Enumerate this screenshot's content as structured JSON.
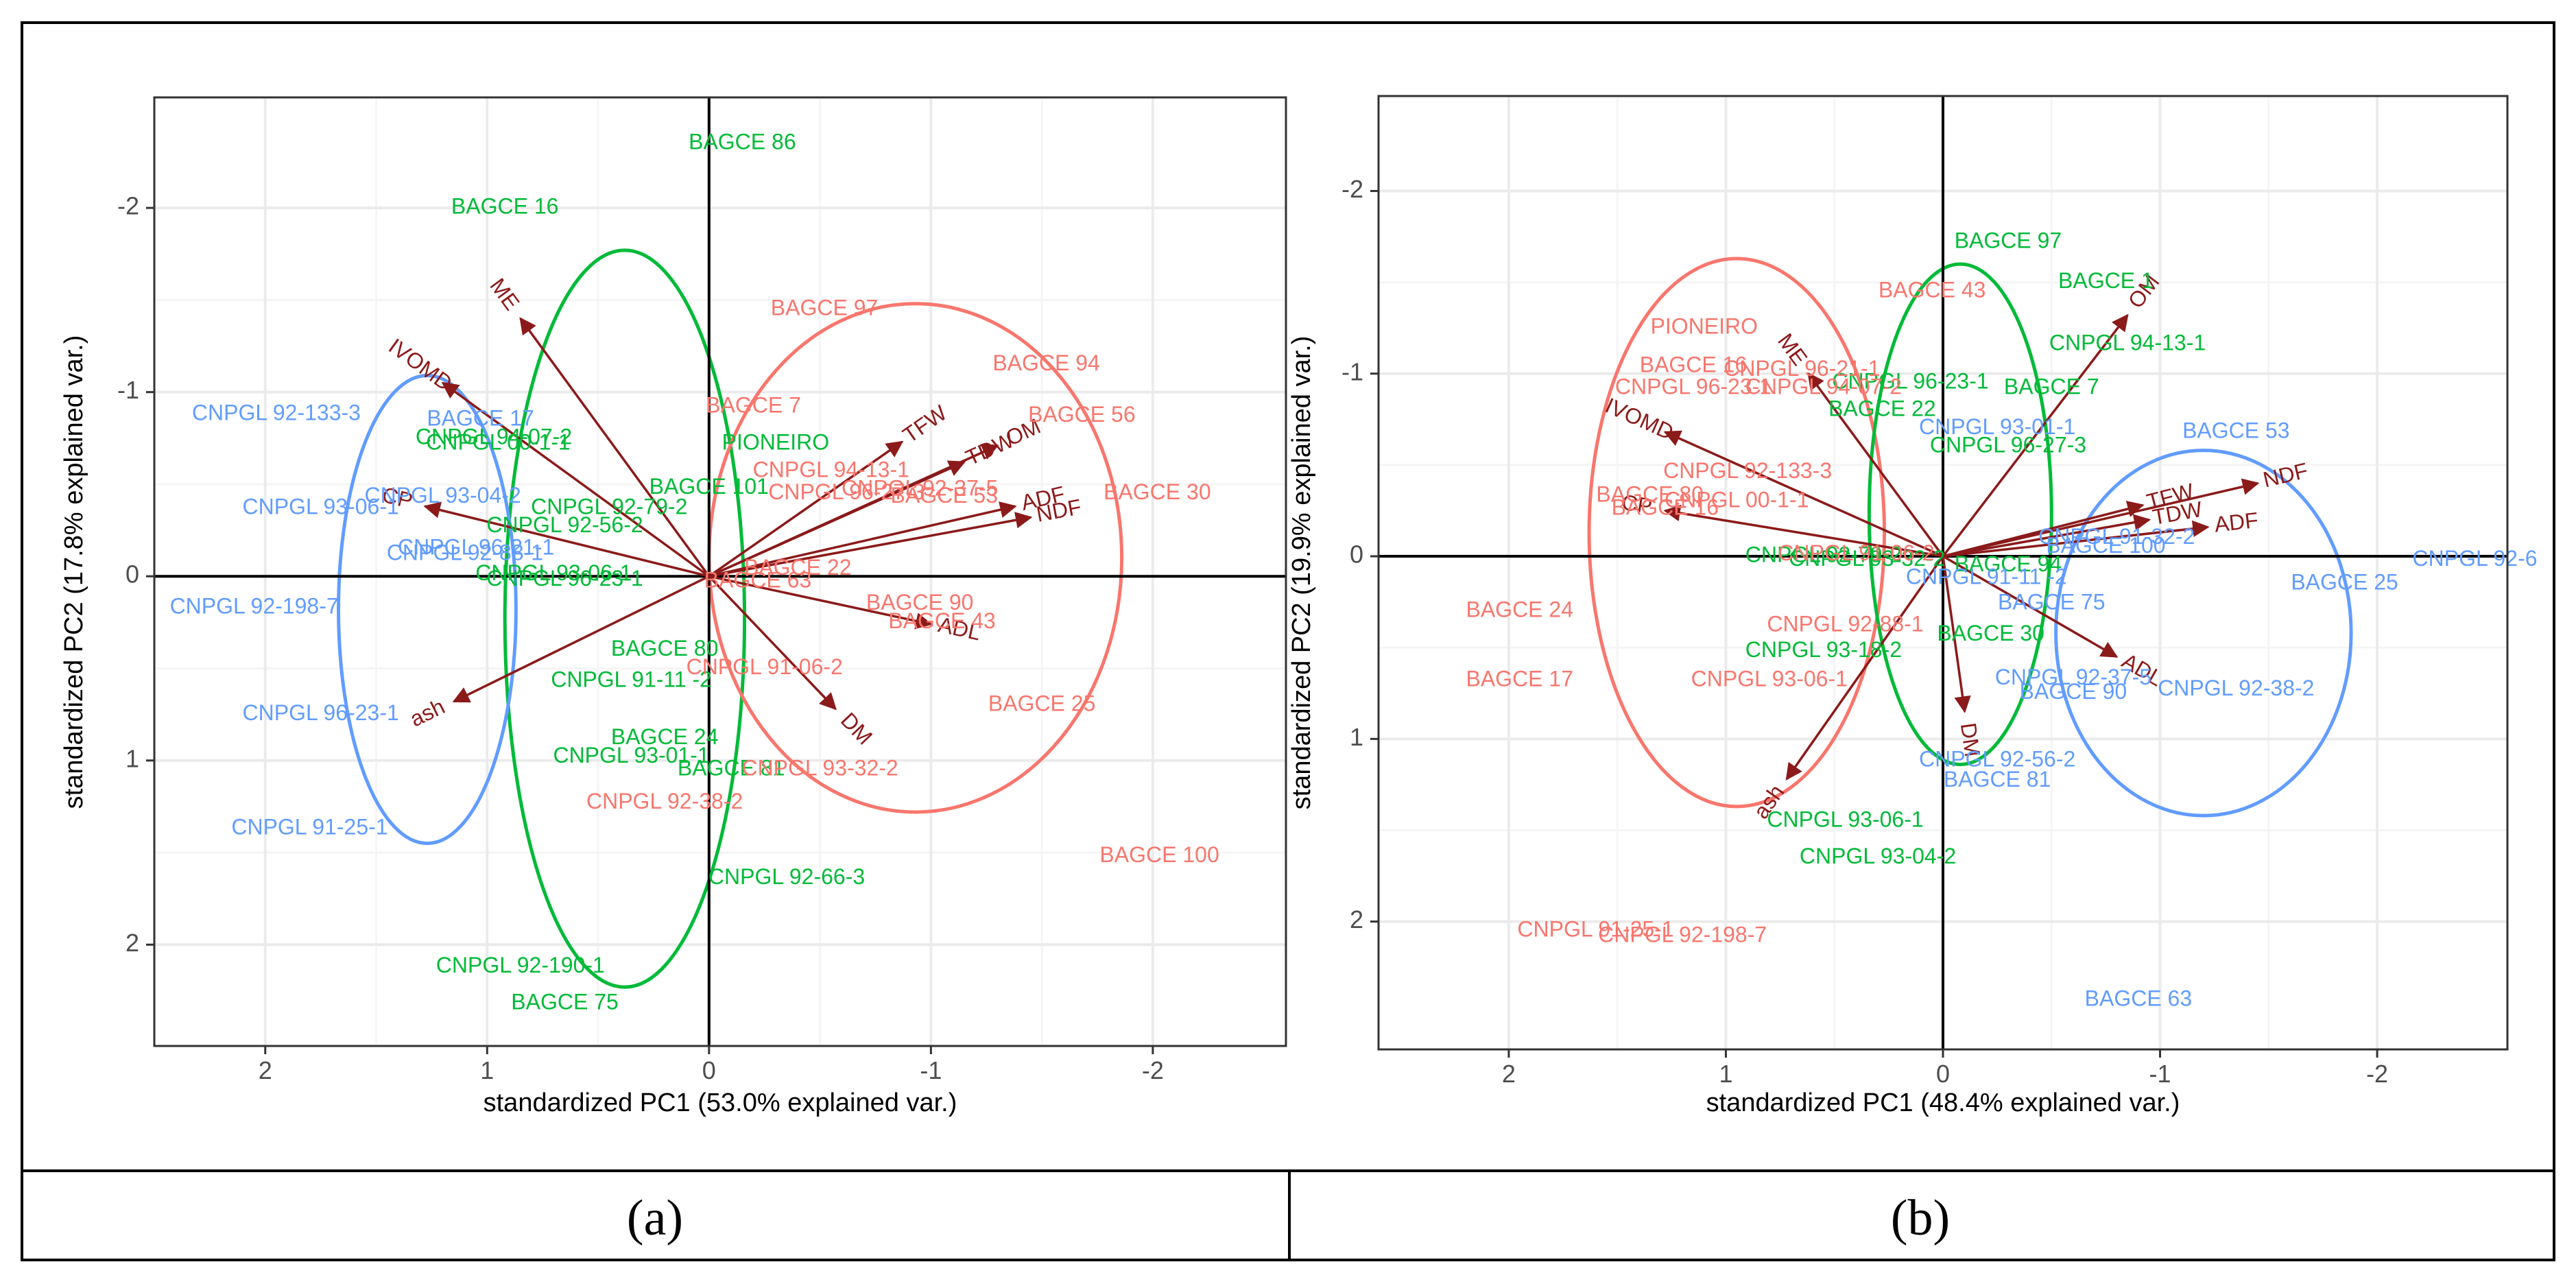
{
  "colors": {
    "red": "#F8766D",
    "green": "#00BA38",
    "blue": "#619CFF",
    "arrow": "#8B1A1A",
    "grid_major": "#ebebeb",
    "grid_minor": "#f5f5f5",
    "axis_line": "#000000",
    "panel_border": "#333333"
  },
  "captions": [
    "(a)",
    "(b)"
  ],
  "chart_data": [
    {
      "type": "scatter",
      "subtype": "pca-biplot",
      "title": "",
      "xlabel": "standardized PC1 (53.0% explained var.)",
      "ylabel": "standardized PC2 (17.8% explained var.)",
      "xlim": [
        2.5,
        -2.6
      ],
      "ylim": [
        -2.6,
        2.55
      ],
      "xticks": [
        2,
        1,
        0,
        -1,
        -2
      ],
      "yticks": [
        -2,
        -1,
        0,
        1,
        2
      ],
      "grid": true,
      "points": [
        {
          "label": "BAGCE 86",
          "x": -0.15,
          "y": -2.35,
          "group": "green"
        },
        {
          "label": "BAGCE 16",
          "x": 0.92,
          "y": -2.0,
          "group": "green"
        },
        {
          "label": "CNPGL 94-07-2",
          "x": 0.97,
          "y": -0.75,
          "group": "green"
        },
        {
          "label": "CNPGL 00-1-1",
          "x": 0.95,
          "y": -0.72,
          "group": "green"
        },
        {
          "label": "PIONEIRO",
          "x": -0.3,
          "y": -0.72,
          "group": "green"
        },
        {
          "label": "BAGCE 101",
          "x": 0.0,
          "y": -0.48,
          "group": "green"
        },
        {
          "label": "CNPGL 92-79-2",
          "x": 0.45,
          "y": -0.37,
          "group": "green"
        },
        {
          "label": "CNPGL 92-56-2",
          "x": 0.65,
          "y": -0.27,
          "group": "green"
        },
        {
          "label": "CNPGL 93-06-1",
          "x": 0.7,
          "y": -0.01,
          "group": "green"
        },
        {
          "label": "CNPGL 96-23-1",
          "x": 0.65,
          "y": 0.02,
          "group": "green"
        },
        {
          "label": "BAGCE 80",
          "x": 0.2,
          "y": 0.4,
          "group": "green"
        },
        {
          "label": "CNPGL 91-11 -2",
          "x": 0.35,
          "y": 0.57,
          "group": "green"
        },
        {
          "label": "BAGCE 24",
          "x": 0.2,
          "y": 0.88,
          "group": "green"
        },
        {
          "label": "CNPGL 93-01-1",
          "x": 0.35,
          "y": 0.98,
          "group": "green"
        },
        {
          "label": "BAGCE 81",
          "x": -0.1,
          "y": 1.05,
          "group": "green"
        },
        {
          "label": "CNPGL 92-66-3",
          "x": -0.35,
          "y": 1.64,
          "group": "green"
        },
        {
          "label": "CNPGL 92-190-1",
          "x": 0.85,
          "y": 2.12,
          "group": "green"
        },
        {
          "label": "BAGCE 75",
          "x": 0.65,
          "y": 2.32,
          "group": "green"
        },
        {
          "label": "BAGCE 97",
          "x": -0.52,
          "y": -1.45,
          "group": "red"
        },
        {
          "label": "BAGCE 94",
          "x": -1.52,
          "y": -1.15,
          "group": "red"
        },
        {
          "label": "BAGCE 56",
          "x": -1.68,
          "y": -0.87,
          "group": "red"
        },
        {
          "label": "BAGCE 7",
          "x": -0.2,
          "y": -0.92,
          "group": "red"
        },
        {
          "label": "CNPGL 94-13-1",
          "x": -0.55,
          "y": -0.57,
          "group": "red"
        },
        {
          "label": "CNPGL 96-27-3",
          "x": -0.62,
          "y": -0.45,
          "group": "red"
        },
        {
          "label": "CNPGL 92-37-5",
          "x": -0.95,
          "y": -0.47,
          "group": "red"
        },
        {
          "label": "BAGCE 53",
          "x": -1.06,
          "y": -0.43,
          "group": "red"
        },
        {
          "label": "BAGCE 30",
          "x": -2.02,
          "y": -0.45,
          "group": "red"
        },
        {
          "label": "BAGCE 22",
          "x": -0.4,
          "y": -0.04,
          "group": "red"
        },
        {
          "label": "BAGCE 63",
          "x": -0.22,
          "y": 0.03,
          "group": "red"
        },
        {
          "label": "BAGCE 90",
          "x": -0.95,
          "y": 0.15,
          "group": "red"
        },
        {
          "label": "BAGCE 43",
          "x": -1.05,
          "y": 0.25,
          "group": "red"
        },
        {
          "label": "CNPGL 91-06-2",
          "x": -0.25,
          "y": 0.5,
          "group": "red"
        },
        {
          "label": "BAGCE 25",
          "x": -1.5,
          "y": 0.7,
          "group": "red"
        },
        {
          "label": "CNPGL 93-32-2",
          "x": -0.5,
          "y": 1.05,
          "group": "red"
        },
        {
          "label": "CNPGL 92-38-2",
          "x": 0.2,
          "y": 1.23,
          "group": "red"
        },
        {
          "label": "BAGCE 100",
          "x": -2.03,
          "y": 1.52,
          "group": "red"
        },
        {
          "label": "CNPGL 92-133-3",
          "x": 1.95,
          "y": -0.88,
          "group": "blue"
        },
        {
          "label": "BAGCE 17",
          "x": 1.03,
          "y": -0.85,
          "group": "blue"
        },
        {
          "label": "CNPGL 93-04-2",
          "x": 1.2,
          "y": -0.43,
          "group": "blue"
        },
        {
          "label": "CNPGL 93-06-1",
          "x": 1.75,
          "y": -0.37,
          "group": "blue"
        },
        {
          "label": "CNPGL 96-21-1",
          "x": 1.05,
          "y": -0.15,
          "group": "blue"
        },
        {
          "label": "CNPGL 92-88-1",
          "x": 1.1,
          "y": -0.12,
          "group": "blue"
        },
        {
          "label": "CNPGL 92-198-7",
          "x": 2.05,
          "y": 0.17,
          "group": "blue"
        },
        {
          "label": "CNPGL 96-23-1",
          "x": 1.75,
          "y": 0.75,
          "group": "blue"
        },
        {
          "label": "CNPGL 91-25-1",
          "x": 1.8,
          "y": 1.37,
          "group": "blue"
        }
      ],
      "arrows": [
        {
          "label": "ME",
          "x": 0.85,
          "y": -1.4
        },
        {
          "label": "IVOMD",
          "x": 1.2,
          "y": -1.05
        },
        {
          "label": "CP",
          "x": 1.28,
          "y": -0.38
        },
        {
          "label": "ash",
          "x": 1.15,
          "y": 0.68
        },
        {
          "label": "TFW",
          "x": -0.87,
          "y": -0.73
        },
        {
          "label": "TDW",
          "x": -1.15,
          "y": -0.62
        },
        {
          "label": "OM",
          "x": -1.3,
          "y": -0.71
        },
        {
          "label": "ADF",
          "x": -1.38,
          "y": -0.38
        },
        {
          "label": "NDF",
          "x": -1.45,
          "y": -0.32
        },
        {
          "label": "ADL",
          "x": -1.0,
          "y": 0.26
        },
        {
          "label": "DM",
          "x": -0.57,
          "y": 0.72
        }
      ],
      "ellipses": [
        {
          "group": "green",
          "cx": 0.38,
          "cy": 0.23,
          "rx": 0.54,
          "ry": 2.0
        },
        {
          "group": "red",
          "cx": -0.93,
          "cy": -0.1,
          "rx": 0.93,
          "ry": 1.38
        },
        {
          "group": "blue",
          "cx": 1.27,
          "cy": 0.18,
          "rx": 0.4,
          "ry": 1.27
        }
      ]
    },
    {
      "type": "scatter",
      "subtype": "pca-biplot",
      "title": "",
      "xlabel": "standardized PC1 (48.4% explained var.)",
      "ylabel": "standardized PC2 (19.9% explained var.)",
      "xlim": [
        2.6,
        -2.6
      ],
      "ylim": [
        -2.52,
        2.7
      ],
      "xticks": [
        2,
        1,
        0,
        -1,
        -2
      ],
      "yticks": [
        -2,
        -1,
        0,
        1,
        2
      ],
      "grid": true,
      "points": [
        {
          "label": "BAGCE 97",
          "x": -0.3,
          "y": -1.72,
          "group": "green"
        },
        {
          "label": "BAGCE 1",
          "x": -0.75,
          "y": -1.5,
          "group": "green"
        },
        {
          "label": "CNPGL 94-13-1",
          "x": -0.85,
          "y": -1.16,
          "group": "green"
        },
        {
          "label": "CNPGL 96-23-1",
          "x": 0.15,
          "y": -0.95,
          "group": "green"
        },
        {
          "label": "BAGCE 7",
          "x": -0.5,
          "y": -0.92,
          "group": "green"
        },
        {
          "label": "BAGCE 22",
          "x": 0.28,
          "y": -0.8,
          "group": "green"
        },
        {
          "label": "CNPGL 96-27-3",
          "x": -0.3,
          "y": -0.6,
          "group": "green"
        },
        {
          "label": "CNPGL 92-79-2",
          "x": 0.55,
          "y": 0.0,
          "group": "green"
        },
        {
          "label": "CNPGL 93-32-2",
          "x": 0.35,
          "y": 0.02,
          "group": "green"
        },
        {
          "label": "BAGCE 94",
          "x": -0.3,
          "y": 0.05,
          "group": "green"
        },
        {
          "label": "BAGCE 30",
          "x": -0.22,
          "y": 0.43,
          "group": "green"
        },
        {
          "label": "CNPGL 93-18-2",
          "x": 0.55,
          "y": 0.52,
          "group": "green"
        },
        {
          "label": "CNPGL 93-06-1",
          "x": 0.45,
          "y": 1.45,
          "group": "green"
        },
        {
          "label": "CNPGL 93-04-2",
          "x": 0.3,
          "y": 1.65,
          "group": "green"
        },
        {
          "label": "BAGCE 43",
          "x": 0.05,
          "y": -1.45,
          "group": "red"
        },
        {
          "label": "PIONEIRO",
          "x": 1.1,
          "y": -1.25,
          "group": "red"
        },
        {
          "label": "BAGCE 16",
          "x": 1.15,
          "y": -1.04,
          "group": "red"
        },
        {
          "label": "CNPGL 96-21-1",
          "x": 0.65,
          "y": -1.02,
          "group": "red"
        },
        {
          "label": "CNPGL 96-23-1",
          "x": 1.15,
          "y": -0.92,
          "group": "red"
        },
        {
          "label": "CNPGL 94-07-2",
          "x": 0.55,
          "y": -0.92,
          "group": "red"
        },
        {
          "label": "CNPGL 92-133-3",
          "x": 0.9,
          "y": -0.46,
          "group": "red"
        },
        {
          "label": "CNPGL 00-1-1",
          "x": 0.95,
          "y": -0.3,
          "group": "red"
        },
        {
          "label": "BAGCE 80",
          "x": 1.35,
          "y": -0.33,
          "group": "red"
        },
        {
          "label": "BAGCE 16",
          "x": 1.28,
          "y": -0.26,
          "group": "red"
        },
        {
          "label": "CNPGL 91-06-2",
          "x": 0.4,
          "y": -0.01,
          "group": "red"
        },
        {
          "label": "BAGCE 24",
          "x": 1.95,
          "y": 0.3,
          "group": "red"
        },
        {
          "label": "CNPGL 92-88-1",
          "x": 0.45,
          "y": 0.38,
          "group": "red"
        },
        {
          "label": "BAGCE 17",
          "x": 1.95,
          "y": 0.68,
          "group": "red"
        },
        {
          "label": "CNPGL 93-06-1",
          "x": 0.8,
          "y": 0.68,
          "group": "red"
        },
        {
          "label": "CNPGL 91-25-1",
          "x": 1.6,
          "y": 2.05,
          "group": "red"
        },
        {
          "label": "CNPGL 92-198-7",
          "x": 1.2,
          "y": 2.08,
          "group": "red"
        },
        {
          "label": "BAGCE 53",
          "x": -1.35,
          "y": -0.68,
          "group": "blue"
        },
        {
          "label": "CNPGL 93-01-1",
          "x": -0.25,
          "y": -0.7,
          "group": "blue"
        },
        {
          "label": "CNPGL 91-32-2",
          "x": -0.8,
          "y": -0.1,
          "group": "blue"
        },
        {
          "label": "BAGCE 100",
          "x": -0.75,
          "y": -0.05,
          "group": "blue"
        },
        {
          "label": "CNPGL 92-6",
          "x": -2.45,
          "y": 0.02,
          "group": "blue"
        },
        {
          "label": "CNPGL 91-11 -2",
          "x": -0.2,
          "y": 0.12,
          "group": "blue"
        },
        {
          "label": "BAGCE 25",
          "x": -1.85,
          "y": 0.15,
          "group": "blue"
        },
        {
          "label": "BAGCE 75",
          "x": -0.5,
          "y": 0.26,
          "group": "blue"
        },
        {
          "label": "CNPGL 92-37-5",
          "x": -0.6,
          "y": 0.67,
          "group": "blue"
        },
        {
          "label": "BAGCE 90",
          "x": -0.6,
          "y": 0.75,
          "group": "blue"
        },
        {
          "label": "CNPGL 92-38-2",
          "x": -1.35,
          "y": 0.73,
          "group": "blue"
        },
        {
          "label": "CNPGL 92-56-2",
          "x": -0.25,
          "y": 1.12,
          "group": "blue"
        },
        {
          "label": "BAGCE 81",
          "x": -0.25,
          "y": 1.23,
          "group": "blue"
        },
        {
          "label": "BAGCE 63",
          "x": -0.9,
          "y": 2.43,
          "group": "blue"
        }
      ],
      "arrows": [
        {
          "label": "ME",
          "x": 0.62,
          "y": -1.0
        },
        {
          "label": "IVOMD",
          "x": 1.28,
          "y": -0.68
        },
        {
          "label": "CP",
          "x": 1.28,
          "y": -0.25
        },
        {
          "label": "ash",
          "x": 0.72,
          "y": 1.22
        },
        {
          "label": "OM",
          "x": -0.85,
          "y": -1.32
        },
        {
          "label": "TFW",
          "x": -0.92,
          "y": -0.28
        },
        {
          "label": "TDW",
          "x": -0.95,
          "y": -0.2
        },
        {
          "label": "NDF",
          "x": -1.45,
          "y": -0.4
        },
        {
          "label": "ADF",
          "x": -1.22,
          "y": -0.16
        },
        {
          "label": "ADL",
          "x": -0.8,
          "y": 0.55
        },
        {
          "label": "DM",
          "x": -0.1,
          "y": 0.85
        }
      ],
      "ellipses": [
        {
          "group": "red",
          "cx": 0.95,
          "cy": -0.13,
          "rx": 0.68,
          "ry": 1.5
        },
        {
          "group": "green",
          "cx": -0.08,
          "cy": -0.23,
          "rx": 0.42,
          "ry": 1.37
        },
        {
          "group": "blue",
          "cx": -1.2,
          "cy": 0.42,
          "rx": 0.68,
          "ry": 1.0
        }
      ]
    }
  ]
}
